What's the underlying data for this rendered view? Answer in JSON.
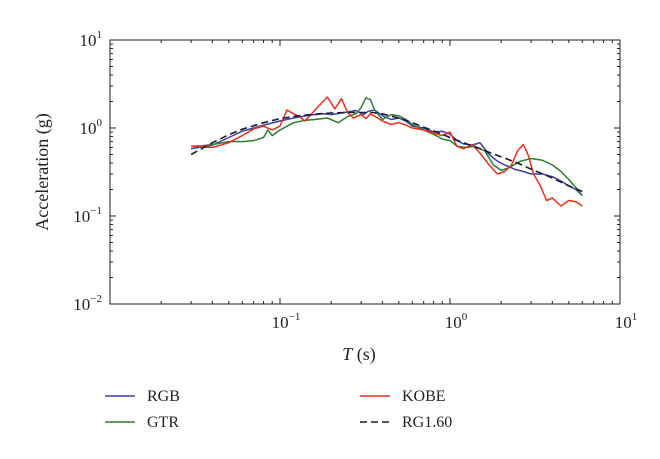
{
  "chart_data": {
    "type": "line",
    "xscale": "log",
    "yscale": "log",
    "xlim": [
      0.01,
      10
    ],
    "ylim": [
      0.01,
      10
    ],
    "xlabel": {
      "italic": "T",
      "rest": " (s)"
    },
    "ylabel": "Acceleration (g)",
    "x_ticks": [
      {
        "value": 0.1,
        "base": "10",
        "exp": "−1"
      },
      {
        "value": 1,
        "base": "10",
        "exp": "0"
      },
      {
        "value": 10,
        "base": "10",
        "exp": "1"
      }
    ],
    "y_ticks": [
      {
        "value": 0.01,
        "base": "10",
        "exp": "−2"
      },
      {
        "value": 0.1,
        "base": "10",
        "exp": "−1"
      },
      {
        "value": 1,
        "base": "10",
        "exp": "0"
      },
      {
        "value": 10,
        "base": "10",
        "exp": "1"
      }
    ],
    "grid": false,
    "legend_position": "bottom",
    "series": [
      {
        "name": "RGB",
        "color": "#3b3fa6",
        "dash": "solid",
        "x": [
          0.03,
          0.04,
          0.05,
          0.06,
          0.07,
          0.08,
          0.1,
          0.12,
          0.15,
          0.18,
          0.2,
          0.24,
          0.28,
          0.31,
          0.33,
          0.36,
          0.4,
          0.45,
          0.5,
          0.55,
          0.6,
          0.7,
          0.8,
          0.9,
          1.0,
          1.1,
          1.2,
          1.35,
          1.5,
          1.7,
          1.9,
          2.1,
          2.4,
          2.7,
          3.0,
          3.5,
          4.0,
          4.5,
          5.0,
          5.5,
          6.0
        ],
        "y": [
          0.58,
          0.64,
          0.78,
          0.92,
          1.0,
          1.08,
          1.2,
          1.3,
          1.4,
          1.45,
          1.42,
          1.5,
          1.58,
          1.42,
          1.55,
          1.6,
          1.38,
          1.25,
          1.3,
          1.2,
          1.05,
          1.0,
          0.9,
          0.92,
          0.85,
          0.72,
          0.66,
          0.64,
          0.68,
          0.5,
          0.42,
          0.38,
          0.34,
          0.32,
          0.3,
          0.3,
          0.28,
          0.25,
          0.22,
          0.2,
          0.17
        ]
      },
      {
        "name": "GTR",
        "color": "#2e7d32",
        "dash": "solid",
        "x": [
          0.03,
          0.035,
          0.04,
          0.05,
          0.06,
          0.07,
          0.08,
          0.085,
          0.09,
          0.1,
          0.12,
          0.14,
          0.16,
          0.19,
          0.22,
          0.25,
          0.28,
          0.3,
          0.32,
          0.34,
          0.36,
          0.4,
          0.45,
          0.5,
          0.55,
          0.6,
          0.7,
          0.8,
          0.9,
          1.0,
          1.1,
          1.25,
          1.4,
          1.6,
          1.8,
          2.0,
          2.2,
          2.6,
          3.0,
          3.5,
          4.0,
          4.5,
          5.0,
          5.5,
          6.0
        ],
        "y": [
          0.62,
          0.63,
          0.65,
          0.7,
          0.7,
          0.72,
          0.78,
          0.95,
          0.82,
          0.95,
          1.15,
          1.22,
          1.25,
          1.3,
          1.15,
          1.35,
          1.45,
          1.7,
          2.2,
          2.1,
          1.6,
          1.25,
          1.42,
          1.38,
          1.25,
          1.1,
          0.95,
          0.85,
          0.75,
          0.72,
          0.62,
          0.6,
          0.62,
          0.55,
          0.38,
          0.33,
          0.35,
          0.42,
          0.45,
          0.43,
          0.38,
          0.32,
          0.26,
          0.21,
          0.17
        ]
      },
      {
        "name": "KOBE",
        "color": "#e8301c",
        "dash": "solid",
        "x": [
          0.03,
          0.04,
          0.05,
          0.06,
          0.07,
          0.08,
          0.09,
          0.1,
          0.11,
          0.12,
          0.13,
          0.14,
          0.15,
          0.17,
          0.19,
          0.21,
          0.23,
          0.25,
          0.27,
          0.3,
          0.32,
          0.34,
          0.37,
          0.4,
          0.45,
          0.5,
          0.55,
          0.6,
          0.7,
          0.8,
          0.9,
          1.0,
          1.1,
          1.2,
          1.35,
          1.5,
          1.7,
          1.9,
          2.1,
          2.3,
          2.5,
          2.7,
          2.9,
          3.1,
          3.4,
          3.7,
          4.0,
          4.5,
          5.0,
          5.5,
          6.0
        ],
        "y": [
          0.62,
          0.6,
          0.68,
          0.82,
          0.98,
          1.05,
          0.95,
          1.05,
          1.6,
          1.45,
          1.35,
          1.2,
          1.38,
          1.8,
          2.25,
          1.65,
          2.15,
          1.5,
          1.3,
          1.42,
          1.28,
          1.45,
          1.32,
          1.2,
          1.1,
          1.15,
          1.08,
          1.0,
          0.95,
          0.88,
          0.82,
          0.9,
          0.62,
          0.58,
          0.65,
          0.52,
          0.38,
          0.3,
          0.32,
          0.38,
          0.55,
          0.65,
          0.48,
          0.3,
          0.22,
          0.15,
          0.16,
          0.13,
          0.15,
          0.145,
          0.13
        ]
      },
      {
        "name": "RG1.60",
        "color": "#1a1a2e",
        "dash": "dashed",
        "x": [
          0.03,
          0.04,
          0.05,
          0.06,
          0.08,
          0.1,
          0.13,
          0.17,
          0.2,
          0.25,
          0.3,
          0.35,
          0.4,
          0.5,
          0.6,
          0.7,
          0.8,
          1.0,
          1.2,
          1.5,
          2.0,
          2.5,
          3.0,
          4.0,
          5.0,
          6.0
        ],
        "y": [
          0.5,
          0.68,
          0.84,
          0.97,
          1.15,
          1.28,
          1.38,
          1.45,
          1.48,
          1.5,
          1.5,
          1.5,
          1.45,
          1.3,
          1.15,
          1.02,
          0.93,
          0.78,
          0.68,
          0.58,
          0.47,
          0.4,
          0.34,
          0.27,
          0.22,
          0.19
        ]
      }
    ]
  }
}
